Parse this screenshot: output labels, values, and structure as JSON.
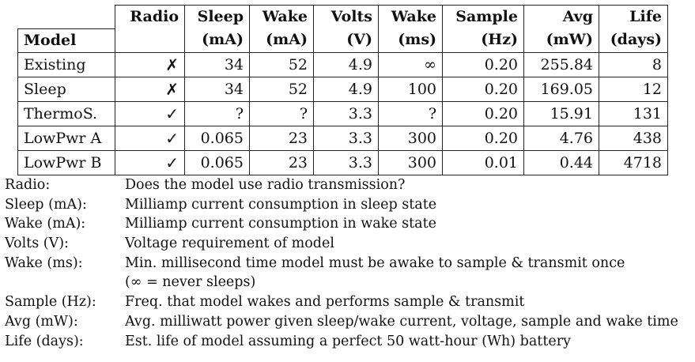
{
  "headers": {
    "model": "Model",
    "cols": [
      {
        "line1": "Radio",
        "line2": ""
      },
      {
        "line1": "Sleep",
        "line2": "(mA)"
      },
      {
        "line1": "Wake",
        "line2": "(mA)"
      },
      {
        "line1": "Volts",
        "line2": "(V)"
      },
      {
        "line1": "Wake",
        "line2": "(ms)"
      },
      {
        "line1": "Sample",
        "line2": "(Hz)"
      },
      {
        "line1": "Avg",
        "line2": "(mW)"
      },
      {
        "line1": "Life",
        "line2": "(days)"
      }
    ]
  },
  "rows": [
    {
      "model": "Existing",
      "radio": "✗",
      "sleep": "34",
      "wake": "52",
      "volts": "4.9",
      "wake_ms": "∞",
      "sample": "0.20",
      "avg": "255.84",
      "life": "8"
    },
    {
      "model": "Sleep",
      "radio": "✗",
      "sleep": "34",
      "wake": "52",
      "volts": "4.9",
      "wake_ms": "100",
      "sample": "0.20",
      "avg": "169.05",
      "life": "12"
    },
    {
      "model": "ThermoS.",
      "radio": "✓",
      "sleep": "?",
      "wake": "?",
      "volts": "3.3",
      "wake_ms": "?",
      "sample": "0.20",
      "avg": "15.91",
      "life": "131"
    },
    {
      "model": "LowPwr A",
      "radio": "✓",
      "sleep": "0.065",
      "wake": "23",
      "volts": "3.3",
      "wake_ms": "300",
      "sample": "0.20",
      "avg": "4.76",
      "life": "438"
    },
    {
      "model": "LowPwr B",
      "radio": "✓",
      "sleep": "0.065",
      "wake": "23",
      "volts": "3.3",
      "wake_ms": "300",
      "sample": "0.01",
      "avg": "0.44",
      "life": "4718"
    }
  ],
  "legend": [
    {
      "term": "Radio:",
      "desc": "Does the model use radio transmission?"
    },
    {
      "term": "Sleep (mA):",
      "desc": "Milliamp current consumption in sleep state"
    },
    {
      "term": "Wake (mA):",
      "desc": "Milliamp current consumption in wake state"
    },
    {
      "term": "Volts (V):",
      "desc": "Voltage requirement of model"
    },
    {
      "term": "Wake (ms):",
      "desc": "Min. millisecond time model must be awake to sample & transmit once",
      "cont": "(∞ = never sleeps)"
    },
    {
      "term": "Sample (Hz):",
      "desc": "Freq. that model wakes and performs sample & transmit"
    },
    {
      "term": "Avg (mW):",
      "desc": "Avg. milliwatt power given sleep/wake current, voltage, sample and wake time"
    },
    {
      "term": "Life (days):",
      "desc": "Est. life of model assuming a perfect 50 watt-hour (Wh) battery"
    }
  ]
}
